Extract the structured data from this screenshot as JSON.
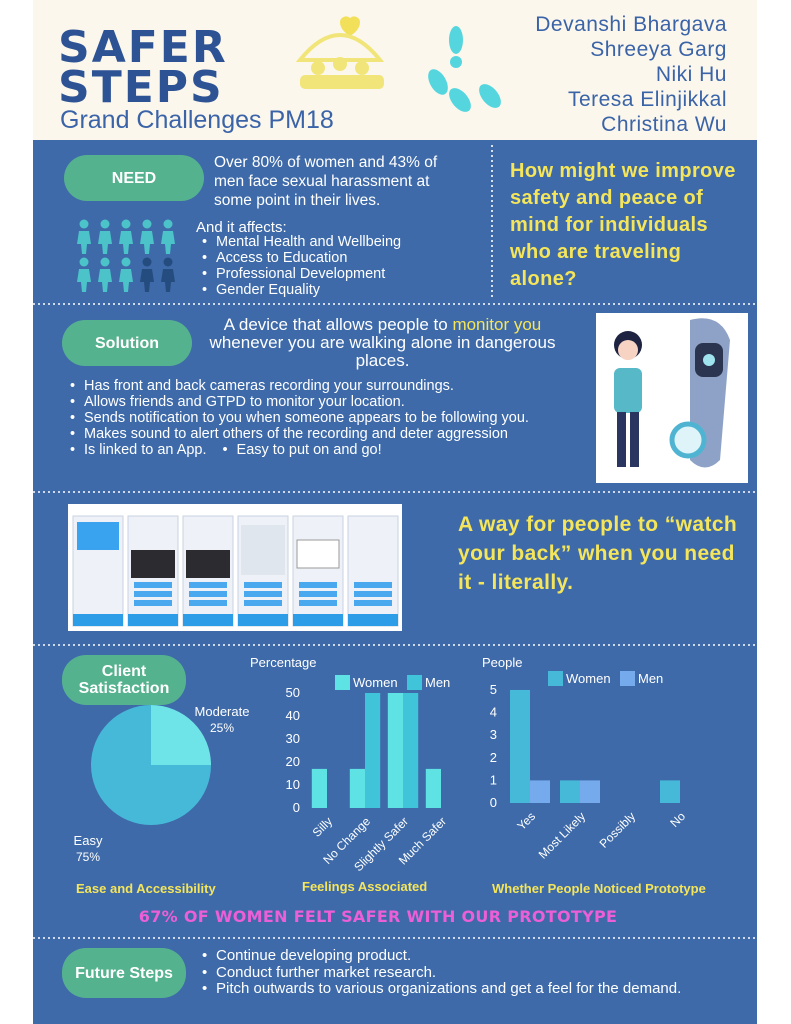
{
  "header": {
    "title": [
      "SAFER",
      "STEPS"
    ],
    "subtitle": "Grand Challenges PM18",
    "authors": [
      "Devanshi Bhargava",
      "Shreeya Garg",
      "Niki Hu",
      "Teresa Elinjikkal",
      "Christina Wu"
    ]
  },
  "need": {
    "label": "NEED",
    "text": "Over 80% of women and 43% of men face sexual harassment at some point in their lives.",
    "affects_intro": "And it affects:",
    "affects": [
      "Mental Health and Wellbeing",
      "Access to Education",
      "Professional Development",
      "Gender Equality"
    ],
    "question": "How might we improve safety and peace of mind for individuals who are traveling alone?"
  },
  "solution": {
    "label": "Solution",
    "statement": [
      "A device that allows people to ",
      "monitor you",
      " whenever you are walking alone in dangerous places."
    ],
    "bullets": [
      "Has front and back cameras recording your surroundings.",
      "Allows friends and GTPD to monitor your location.",
      "Sends notification to you when someone appears to be following you.",
      "Makes sound to alert others of the recording and deter aggression",
      "Is linked to an App.",
      "Easy to put on and go!"
    ]
  },
  "prototype": {
    "tagline": "A way for people to “watch your back” when you need it - literally."
  },
  "client_satisfaction": {
    "label": "Client Satisfaction",
    "highlight": "67% OF WOMEN FELT SAFER WITH OUR PROTOTYPE"
  },
  "chart_data": [
    {
      "type": "pie",
      "title": "Ease and Accessibility",
      "categories": [
        "Moderate",
        "Easy"
      ],
      "values": [
        25,
        75
      ],
      "value_labels": [
        "25%",
        "75%"
      ],
      "colors": [
        "#6ee3e8",
        "#46b9d8"
      ]
    },
    {
      "type": "bar",
      "title": "Feelings Associated",
      "ylabel": "Percentage",
      "categories": [
        "Silly",
        "No Change",
        "Slightly Safer",
        "Much Safer"
      ],
      "series": [
        {
          "name": "Women",
          "color": "#5fe2e3",
          "values": [
            17,
            17,
            50,
            17
          ]
        },
        {
          "name": "Men",
          "color": "#40c4d9",
          "values": [
            0,
            50,
            50,
            0
          ]
        }
      ],
      "ylim": [
        0,
        55
      ],
      "yticks": [
        0,
        10,
        20,
        30,
        40,
        50
      ],
      "grid": false
    },
    {
      "type": "bar",
      "title": "Whether People Noticed Prototype",
      "ylabel": "People",
      "categories": [
        "Yes",
        "Most Likely",
        "Possibly",
        "No"
      ],
      "series": [
        {
          "name": "Women",
          "color": "#46b9d8",
          "values": [
            5,
            1,
            0,
            1
          ]
        },
        {
          "name": "Men",
          "color": "#75aaec",
          "values": [
            1,
            1,
            0,
            0
          ]
        }
      ],
      "ylim": [
        0,
        5.3
      ],
      "yticks": [
        0,
        1,
        2,
        3,
        4,
        5
      ],
      "grid": false
    }
  ],
  "future_steps": {
    "label": "Future Steps",
    "bullets": [
      "Continue developing product.",
      "Conduct further market research.",
      "Pitch outwards to various organizations and get a feel for the demand."
    ]
  }
}
